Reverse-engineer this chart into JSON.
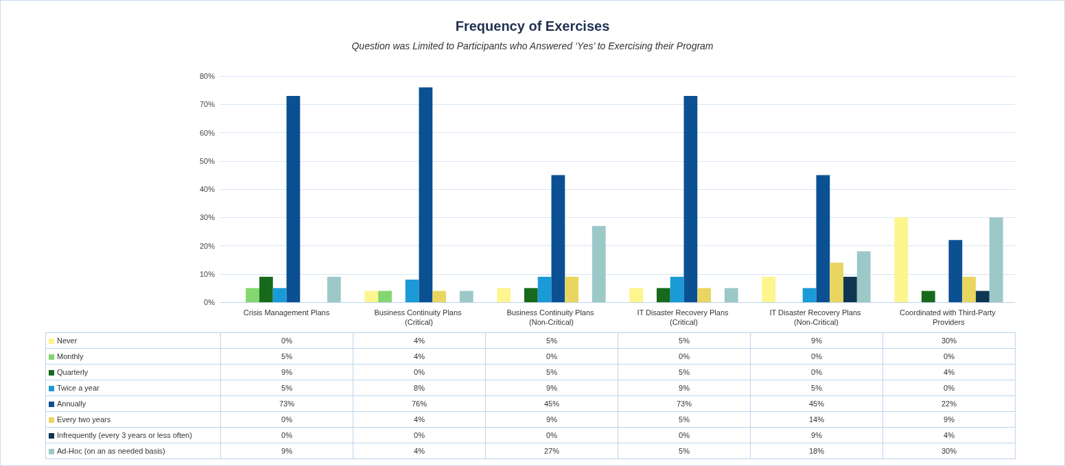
{
  "chart_data": {
    "type": "bar",
    "title": "Frequency of Exercises",
    "subtitle": "Question was Limited to Participants who Answered ‘Yes’ to Exercising their Program",
    "categories": [
      "Crisis Management Plans",
      "Business Continuity Plans (Critical)",
      "Business Continuity Plans (Non-Critical)",
      "IT Disaster Recovery Plans (Critical)",
      "IT Disaster Recovery Plans (Non-Critical)",
      "Coordinated with Third-Party Providers"
    ],
    "series": [
      {
        "name": "Never",
        "color": "#fdf58e",
        "values": [
          0,
          4,
          5,
          5,
          9,
          30
        ],
        "value_labels": [
          "0%",
          "4%",
          "5%",
          "5%",
          "9%",
          "30%"
        ]
      },
      {
        "name": "Monthly",
        "color": "#84d66e",
        "values": [
          5,
          4,
          0,
          0,
          0,
          0
        ],
        "value_labels": [
          "5%",
          "4%",
          "0%",
          "0%",
          "0%",
          "0%"
        ]
      },
      {
        "name": "Quarterly",
        "color": "#17691c",
        "values": [
          9,
          0,
          5,
          5,
          0,
          4
        ],
        "value_labels": [
          "9%",
          "0%",
          "5%",
          "5%",
          "0%",
          "4%"
        ]
      },
      {
        "name": "Twice a year",
        "color": "#1b9ad8",
        "values": [
          5,
          8,
          9,
          9,
          5,
          0
        ],
        "value_labels": [
          "5%",
          "8%",
          "9%",
          "9%",
          "5%",
          "0%"
        ]
      },
      {
        "name": "Annually",
        "color": "#0b5093",
        "values": [
          73,
          76,
          45,
          73,
          45,
          22
        ],
        "value_labels": [
          "73%",
          "76%",
          "45%",
          "73%",
          "45%",
          "22%"
        ]
      },
      {
        "name": "Every two years",
        "color": "#e9d660",
        "values": [
          0,
          4,
          9,
          5,
          14,
          9
        ],
        "value_labels": [
          "0%",
          "4%",
          "9%",
          "5%",
          "14%",
          "9%"
        ]
      },
      {
        "name": "Infrequently (every 3 years or less often)",
        "color": "#0f3552",
        "values": [
          0,
          0,
          0,
          0,
          9,
          4
        ],
        "value_labels": [
          "0%",
          "0%",
          "0%",
          "0%",
          "9%",
          "4%"
        ]
      },
      {
        "name": "Ad-Hoc (on an as needed basis)",
        "color": "#9cc8c8",
        "values": [
          9,
          4,
          27,
          5,
          18,
          30
        ],
        "value_labels": [
          "9%",
          "4%",
          "27%",
          "5%",
          "18%",
          "30%"
        ]
      }
    ],
    "ylim": [
      0,
      80
    ],
    "yticks": [
      {
        "value": 0,
        "label": "0%"
      },
      {
        "value": 10,
        "label": "10%"
      },
      {
        "value": 20,
        "label": "20%"
      },
      {
        "value": 30,
        "label": "30%"
      },
      {
        "value": 40,
        "label": "40%"
      },
      {
        "value": 50,
        "label": "50%"
      },
      {
        "value": 60,
        "label": "60%"
      },
      {
        "value": 70,
        "label": "70%"
      },
      {
        "value": 80,
        "label": "80%"
      }
    ],
    "grid": "y",
    "legend": "bottom left"
  }
}
